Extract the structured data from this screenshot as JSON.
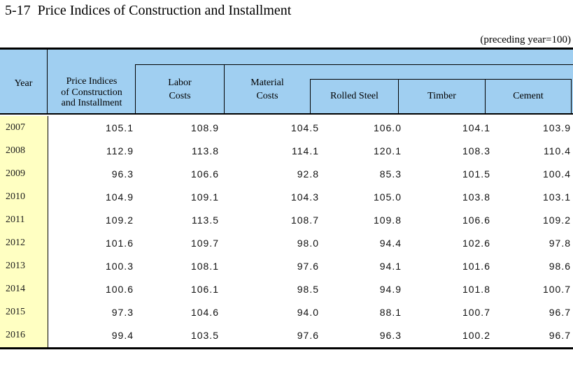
{
  "title": "5-17  Price Indices of Construction and Installment",
  "note": "(preceding year=100)",
  "colors": {
    "header_bg": "#A0CFF1",
    "year_column_bg": "#FFFFC2",
    "border": "#000000"
  },
  "header": {
    "year": "Year",
    "price_indices_line1": "Price Indices",
    "price_indices_line2": "of Construction",
    "price_indices_line3": "and Installment",
    "labor_line1": "Labor",
    "labor_line2": "Costs",
    "material_line1": "Material",
    "material_line2": "Costs",
    "sub_columns": [
      "Rolled Steel",
      "Timber",
      "Cement"
    ]
  },
  "rows": [
    {
      "year": "2007",
      "values": [
        "105.1",
        "108.9",
        "104.5",
        "106.0",
        "104.1",
        "103.9"
      ]
    },
    {
      "year": "2008",
      "values": [
        "112.9",
        "113.8",
        "114.1",
        "120.1",
        "108.3",
        "110.4"
      ]
    },
    {
      "year": "2009",
      "values": [
        "96.3",
        "106.6",
        "92.8",
        "85.3",
        "101.5",
        "100.4"
      ]
    },
    {
      "year": "2010",
      "values": [
        "104.9",
        "109.1",
        "104.3",
        "105.0",
        "103.8",
        "103.1"
      ]
    },
    {
      "year": "2011",
      "values": [
        "109.2",
        "113.5",
        "108.7",
        "109.8",
        "106.6",
        "109.2"
      ]
    },
    {
      "year": "2012",
      "values": [
        "101.6",
        "109.7",
        "98.0",
        "94.4",
        "102.6",
        "97.8"
      ]
    },
    {
      "year": "2013",
      "values": [
        "100.3",
        "108.1",
        "97.6",
        "94.1",
        "101.6",
        "98.6"
      ]
    },
    {
      "year": "2014",
      "values": [
        "100.6",
        "106.1",
        "98.5",
        "94.9",
        "101.8",
        "100.7"
      ]
    },
    {
      "year": "2015",
      "values": [
        "97.3",
        "104.6",
        "94.0",
        "88.1",
        "100.7",
        "96.7"
      ]
    },
    {
      "year": "2016",
      "values": [
        "99.4",
        "103.5",
        "97.6",
        "96.3",
        "100.2",
        "96.7"
      ]
    }
  ],
  "chart_data": {
    "type": "table",
    "title": "5-17 Price Indices of Construction and Installment",
    "note": "(preceding year=100)",
    "columns": [
      "Year",
      "Price Indices of Construction and Installment",
      "Labor Costs",
      "Material Costs",
      "Rolled Steel",
      "Timber",
      "Cement"
    ],
    "rows": [
      [
        2007,
        105.1,
        108.9,
        104.5,
        106.0,
        104.1,
        103.9
      ],
      [
        2008,
        112.9,
        113.8,
        114.1,
        120.1,
        108.3,
        110.4
      ],
      [
        2009,
        96.3,
        106.6,
        92.8,
        85.3,
        101.5,
        100.4
      ],
      [
        2010,
        104.9,
        109.1,
        104.3,
        105.0,
        103.8,
        103.1
      ],
      [
        2011,
        109.2,
        113.5,
        108.7,
        109.8,
        106.6,
        109.2
      ],
      [
        2012,
        101.6,
        109.7,
        98.0,
        94.4,
        102.6,
        97.8
      ],
      [
        2013,
        100.3,
        108.1,
        97.6,
        94.1,
        101.6,
        98.6
      ],
      [
        2014,
        100.6,
        106.1,
        98.5,
        94.9,
        101.8,
        100.7
      ],
      [
        2015,
        97.3,
        104.6,
        94.0,
        88.1,
        100.7,
        96.7
      ],
      [
        2016,
        99.4,
        103.5,
        97.6,
        96.3,
        100.2,
        96.7
      ]
    ]
  }
}
